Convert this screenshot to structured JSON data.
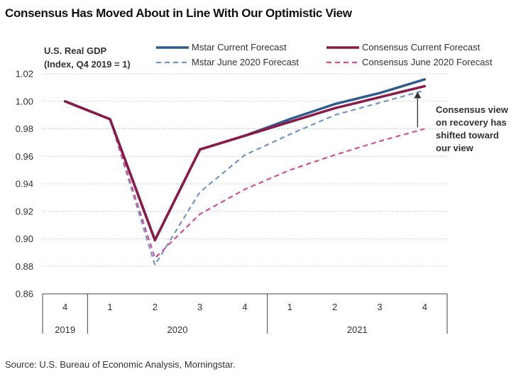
{
  "chart_data": {
    "type": "line",
    "title": "Consensus Has Moved About in Line With Our Optimistic View",
    "ylabel_line1": "U.S. Real GDP",
    "ylabel_line2": "(Index, Q4 2019 = 1)",
    "ylim": [
      0.86,
      1.02
    ],
    "yticks": [
      "1.02",
      "1.00",
      "0.98",
      "0.96",
      "0.94",
      "0.92",
      "0.90",
      "0.88",
      "0.86"
    ],
    "ytick_values": [
      1.02,
      1.0,
      0.98,
      0.96,
      0.94,
      0.92,
      0.9,
      0.88,
      0.86
    ],
    "categories": [
      "4",
      "1",
      "2",
      "3",
      "4",
      "1",
      "2",
      "3",
      "4"
    ],
    "years": [
      {
        "label": "2019",
        "start": 0,
        "end": 0
      },
      {
        "label": "2020",
        "start": 1,
        "end": 4
      },
      {
        "label": "2021",
        "start": 5,
        "end": 8
      }
    ],
    "series": [
      {
        "name": "Mstar June 2020 Forecast",
        "color": "#6f95c9",
        "dashed": true,
        "values": [
          1.0,
          0.987,
          0.881,
          0.934,
          0.961,
          0.976,
          0.99,
          0.999,
          1.008
        ]
      },
      {
        "name": "Consensus June 2020 Forecast",
        "color": "#d1508f",
        "dashed": true,
        "values": [
          1.0,
          0.987,
          0.886,
          0.918,
          0.936,
          0.95,
          0.961,
          0.971,
          0.98
        ]
      },
      {
        "name": "Mstar Current Forecast",
        "color": "#2f5b8e",
        "dashed": false,
        "values": [
          1.0,
          0.987,
          0.899,
          0.965,
          0.975,
          0.987,
          0.998,
          1.006,
          1.016
        ]
      },
      {
        "name": "Consensus Current Forecast",
        "color": "#8c1a49",
        "dashed": false,
        "values": [
          1.0,
          0.987,
          0.899,
          0.965,
          0.975,
          0.985,
          0.995,
          1.003,
          1.011
        ]
      }
    ],
    "legend_order": [
      "Mstar Current Forecast",
      "Consensus Current Forecast",
      "Mstar June 2020 Forecast",
      "Consensus June 2020 Forecast"
    ],
    "annotation": {
      "lines": [
        "Consensus view",
        "on recovery has",
        "shifted toward",
        "our view"
      ],
      "arrow_from_value": 0.981,
      "arrow_to_value": 1.01
    },
    "grid": true
  },
  "source": "Source: U.S. Bureau of Economic Analysis, Morningstar."
}
